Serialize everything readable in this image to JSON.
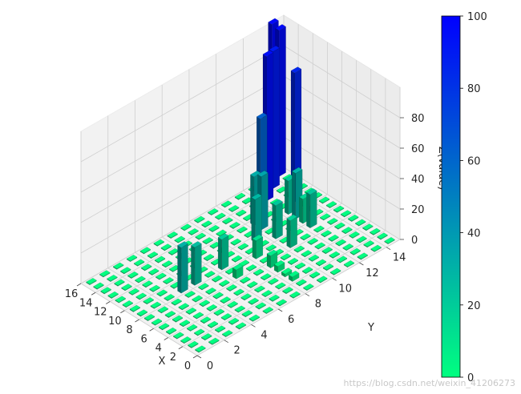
{
  "chart_data": {
    "type": "bar3d",
    "xlabel": "X",
    "ylabel": "Y",
    "zlabel": "Z(value)",
    "x_ticks": [
      "0",
      "2",
      "4",
      "6",
      "8",
      "10",
      "12",
      "14",
      "16"
    ],
    "y_ticks": [
      "0",
      "2",
      "4",
      "6",
      "8",
      "10",
      "12",
      "14"
    ],
    "z_ticks": [
      "0",
      "20",
      "40",
      "60",
      "80"
    ],
    "xlim": [
      0,
      16
    ],
    "ylim": [
      0,
      15
    ],
    "zlim": [
      0,
      100
    ],
    "grid": true,
    "colormap": {
      "name": "winter_r",
      "low_color": "#00ff80",
      "high_color": "#0000ff",
      "min": 0,
      "max": 100
    },
    "colorbar_ticks": [
      "0",
      "20",
      "40",
      "60",
      "80",
      "100"
    ],
    "grid_size": {
      "nx": 16,
      "ny": 15
    },
    "default_value": 0.5,
    "bars": [
      {
        "x": 2,
        "y": 8,
        "z": 3
      },
      {
        "x": 3,
        "y": 8,
        "z": 2
      },
      {
        "x": 4,
        "y": 8,
        "z": 4
      },
      {
        "x": 5,
        "y": 8,
        "z": 8
      },
      {
        "x": 6,
        "y": 6,
        "z": 6
      },
      {
        "x": 6,
        "y": 10,
        "z": 18
      },
      {
        "x": 7,
        "y": 8,
        "z": 12
      },
      {
        "x": 7,
        "y": 12,
        "z": 22
      },
      {
        "x": 8,
        "y": 3,
        "z": 30
      },
      {
        "x": 8,
        "y": 4,
        "z": 25
      },
      {
        "x": 8,
        "y": 6,
        "z": 20
      },
      {
        "x": 8,
        "y": 10,
        "z": 22
      },
      {
        "x": 8,
        "y": 12,
        "z": 16
      },
      {
        "x": 9,
        "y": 9,
        "z": 28
      },
      {
        "x": 9,
        "y": 12,
        "z": 30
      },
      {
        "x": 10,
        "y": 10,
        "z": 35
      },
      {
        "x": 10,
        "y": 12,
        "z": 22
      },
      {
        "x": 11,
        "y": 10,
        "z": 32
      },
      {
        "x": 11,
        "y": 13,
        "z": 85
      },
      {
        "x": 12,
        "y": 11,
        "z": 62
      },
      {
        "x": 13,
        "y": 12,
        "z": 95
      },
      {
        "x": 14,
        "y": 13,
        "z": 90
      },
      {
        "x": 15,
        "y": 14,
        "z": 96
      },
      {
        "x": 16,
        "y": 14,
        "z": 97
      }
    ]
  },
  "watermark": "https://blog.csdn.net/weixin_41206273"
}
